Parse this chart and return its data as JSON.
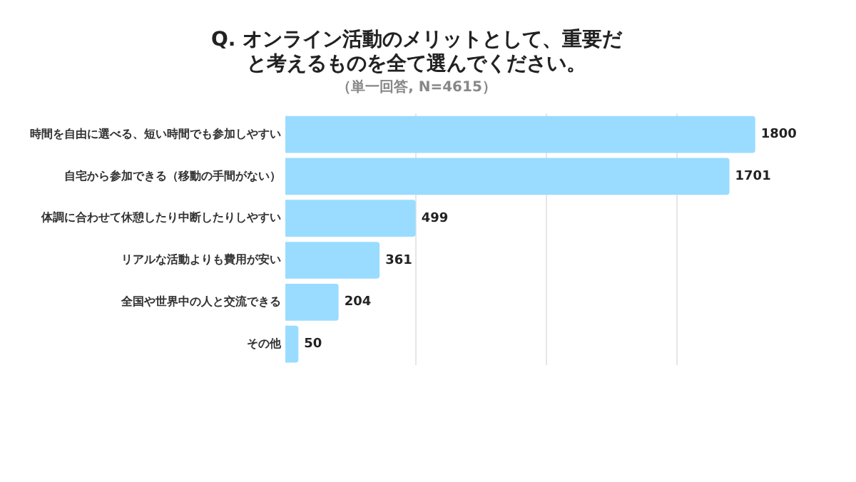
{
  "chart_data": {
    "type": "bar",
    "orientation": "horizontal",
    "title": "Q. オンライン活動のメリットとして、重要だと考えるものを全て選んでください。",
    "subtitle": "（単一回答, N=4615）",
    "categories": [
      "時間を自由に選べる、短い時間でも参加しやすい",
      "自宅から参加できる（移動の手間がない）",
      "体調に合わせて休憩したり中断したりしやすい",
      "リアルな活動よりも費用が安い",
      "全国や世界中の人と交流できる",
      "その他"
    ],
    "values": [
      1800,
      1701,
      499,
      361,
      204,
      50
    ],
    "color": "#99dcff",
    "xticks": [
      {
        "value": 500,
        "label": null
      },
      {
        "value": 1000,
        "label": null
      },
      {
        "value": 1500,
        "label": null
      }
    ],
    "grid": "x",
    "tick_labels": "y",
    "data_labels": true,
    "legend": false
  }
}
